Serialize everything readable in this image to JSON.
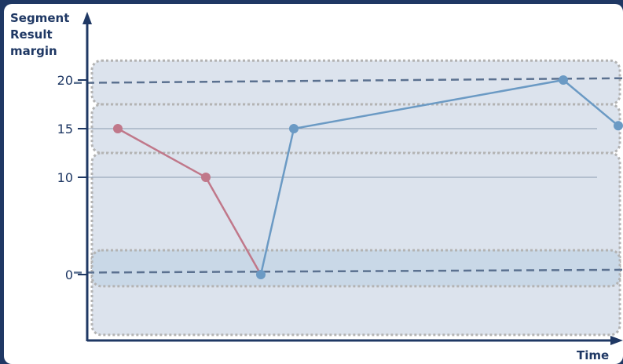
{
  "chart_data": {
    "type": "line",
    "ylabel_lines": [
      "Segment",
      "Result",
      "margin"
    ],
    "xlabel": "Time",
    "yticks": [
      {
        "value": 20,
        "label": "20"
      },
      {
        "value": 15,
        "label": "15"
      },
      {
        "value": 10,
        "label": "10"
      },
      {
        "value": 0,
        "label": "0"
      }
    ],
    "series": [
      {
        "color": "#c0788a",
        "points": [
          [
            1,
            15
          ],
          [
            2.6,
            10
          ],
          [
            3.6,
            0
          ]
        ]
      },
      {
        "color": "#6b9ac4",
        "points": [
          [
            3.6,
            0
          ],
          [
            4.2,
            15
          ],
          [
            9.1,
            20
          ],
          [
            10.1,
            15.3
          ]
        ]
      }
    ],
    "reference_lines": [
      {
        "color": "#5b7190",
        "style": "dashed",
        "from": [
          0.2,
          19.7
        ],
        "to": [
          10.5,
          20.2
        ]
      },
      {
        "color": "#5b7190",
        "style": "dashed",
        "from": [
          0.2,
          0.2
        ],
        "to": [
          10.5,
          0.5
        ]
      }
    ],
    "gridlines": [
      15,
      10
    ],
    "bands": [
      {
        "y": [
          17.5,
          22
        ],
        "fill": "#dce3ed"
      },
      {
        "y": [
          12.5,
          17.5
        ],
        "fill": "#dce3ed"
      },
      {
        "y": [
          -6.2,
          12.5
        ],
        "fill": "#dce3ed"
      },
      {
        "y": [
          -1.2,
          2.5
        ],
        "fill": "#c9d8e7"
      }
    ]
  },
  "colors": {
    "frame": "#1f3864",
    "axis": "#1f3864",
    "band_fill": "#dce3ed",
    "band_border": "#b3b3b3",
    "grid": "#8a9bb0"
  }
}
